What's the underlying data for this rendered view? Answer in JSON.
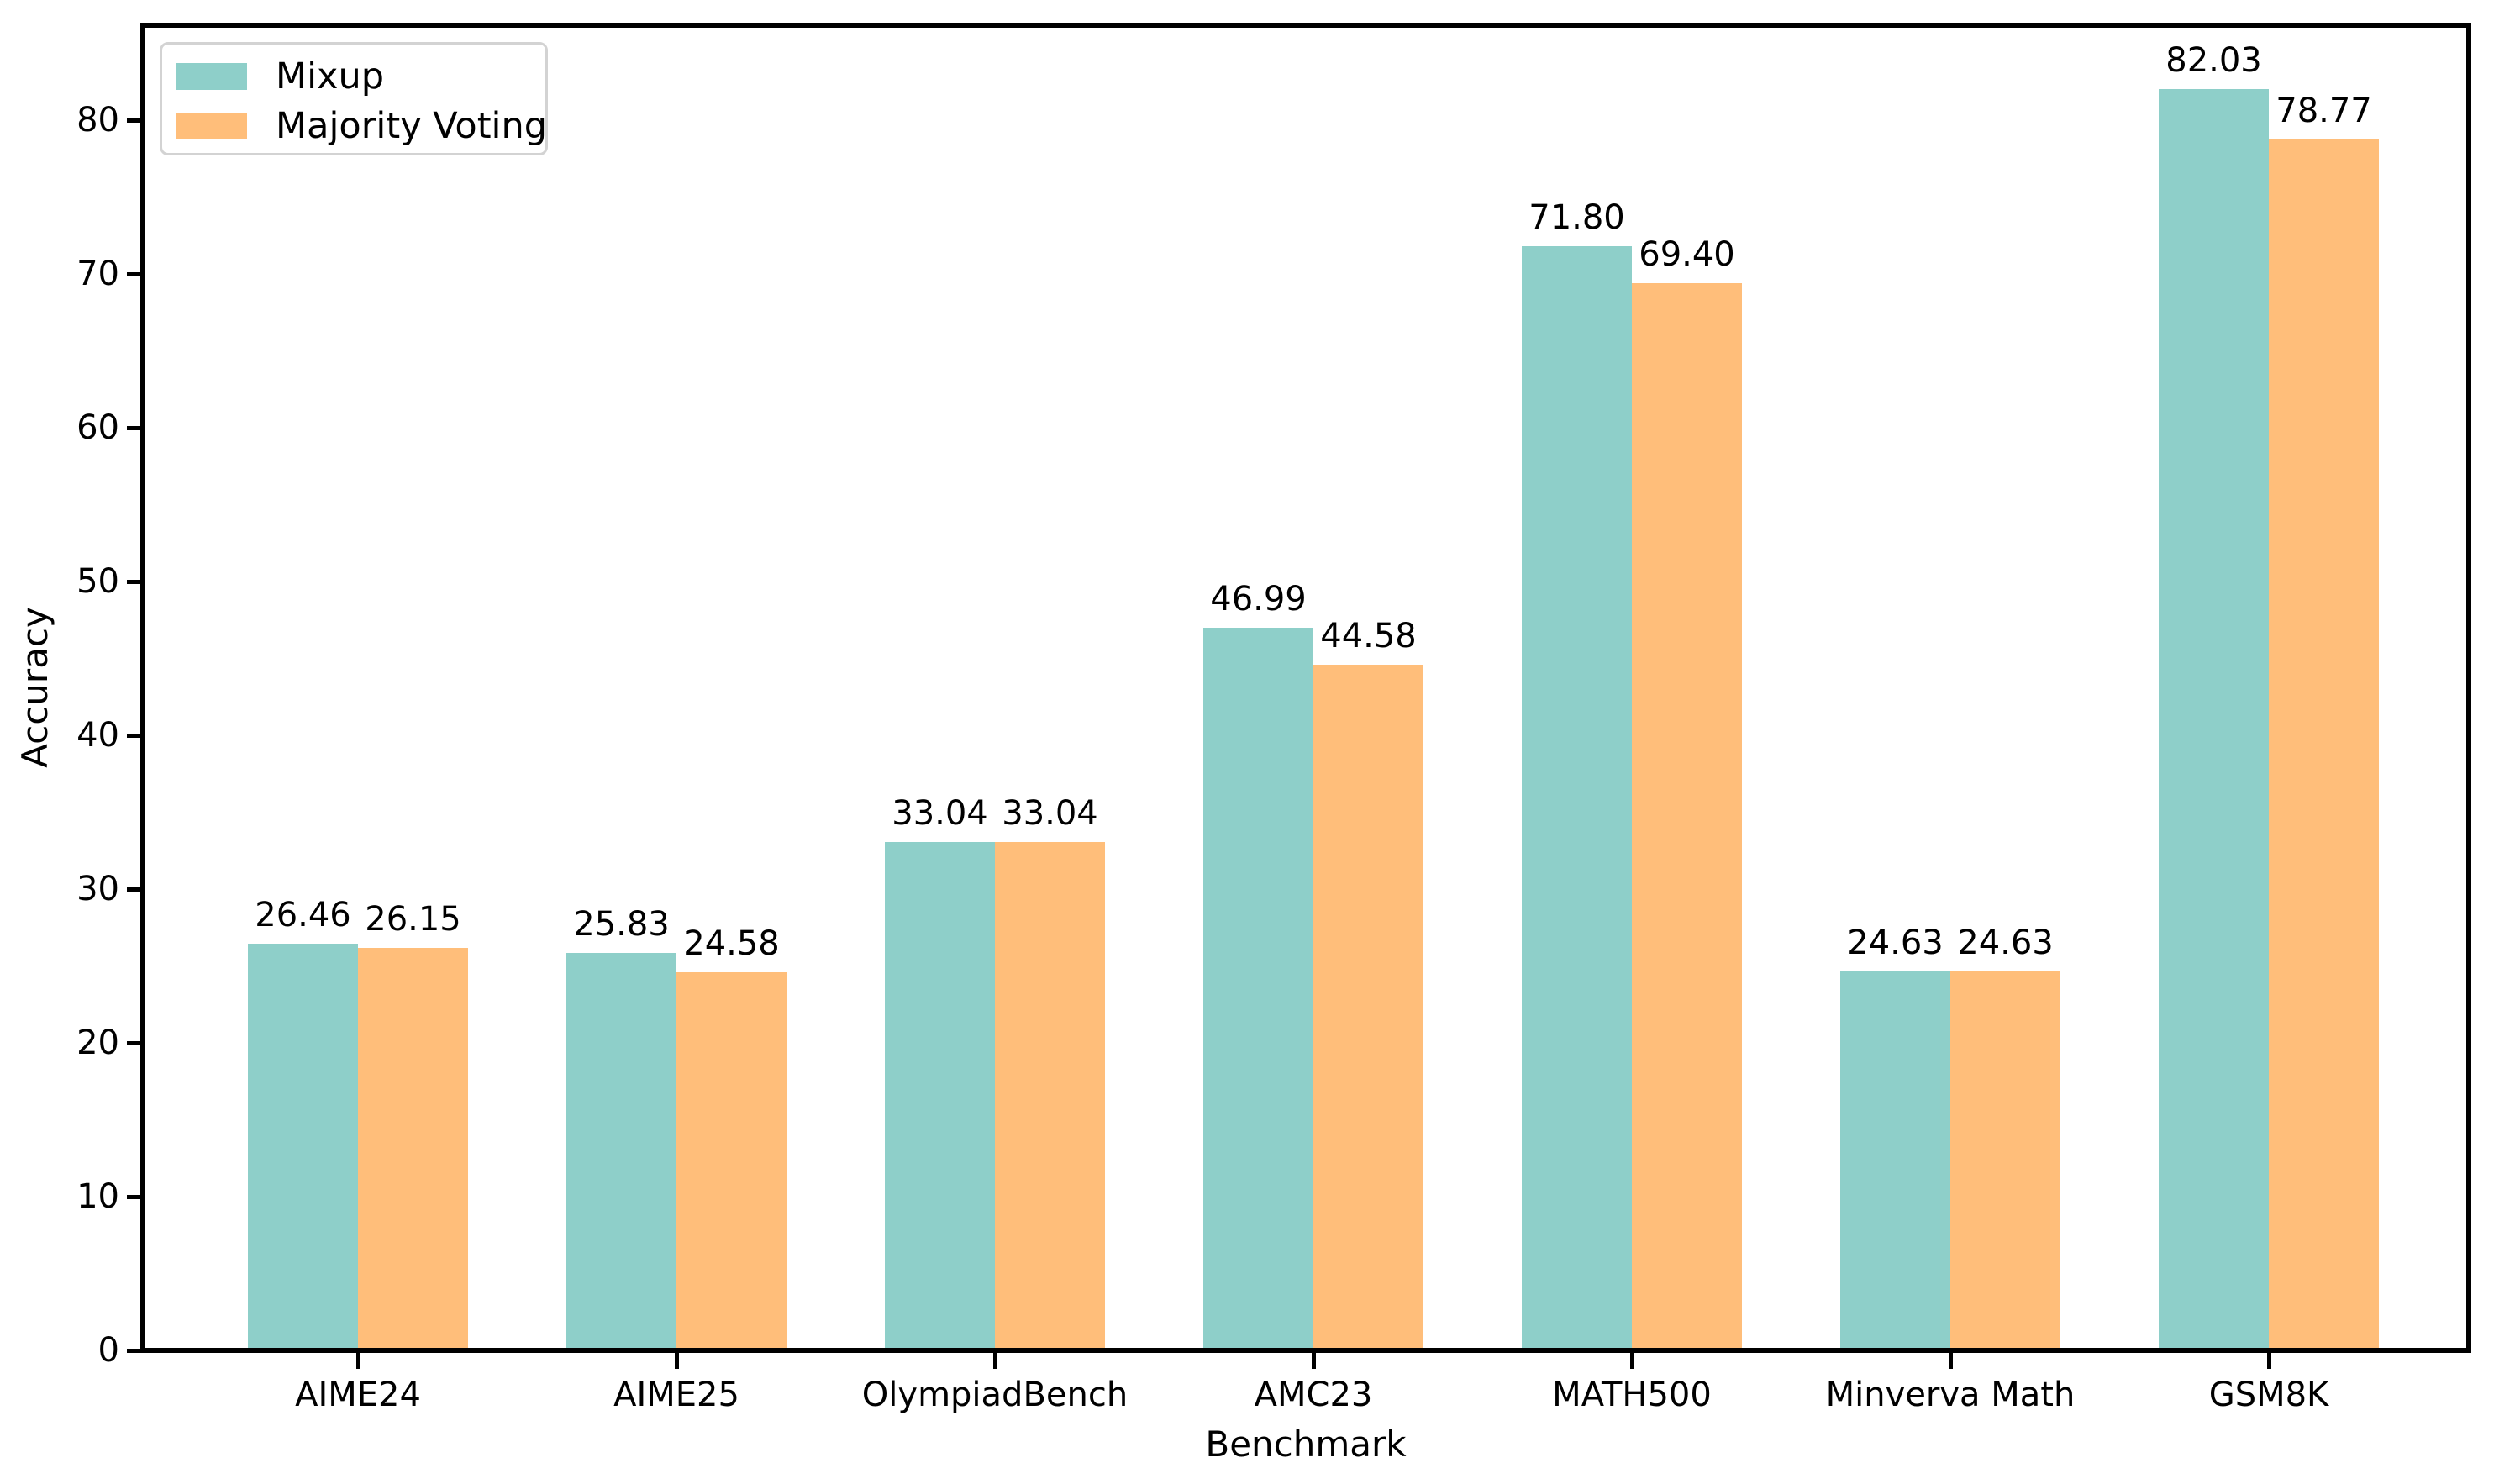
{
  "chart_data": {
    "type": "bar",
    "title": "",
    "xlabel": "Benchmark",
    "ylabel": "Accuracy",
    "categories": [
      "AIME24",
      "AIME25",
      "OlympiadBench",
      "AMC23",
      "MATH500",
      "Minverva Math",
      "GSM8K"
    ],
    "series": [
      {
        "name": "Mixup",
        "color": "#8ECFC9",
        "values": [
          26.46,
          25.83,
          33.04,
          46.99,
          71.8,
          24.63,
          82.03
        ]
      },
      {
        "name": "Majority Voting",
        "color": "#FFBE7A",
        "values": [
          26.15,
          24.58,
          33.04,
          44.58,
          69.4,
          24.63,
          78.77
        ]
      }
    ],
    "value_labels": [
      [
        "26.46",
        "25.83",
        "33.04",
        "46.99",
        "71.80",
        "24.63",
        "82.03"
      ],
      [
        "26.15",
        "24.58",
        "33.04",
        "44.58",
        "69.40",
        "24.63",
        "78.77"
      ]
    ],
    "ylim": [
      0,
      86
    ],
    "yticks": [
      0,
      10,
      20,
      30,
      40,
      50,
      60,
      70,
      80
    ],
    "legend_position": "upper left",
    "grid": false,
    "background_color": "#ffffff",
    "spine_color": "#000000",
    "text_color": "#000000",
    "legend_border_color": "#d3d3d3"
  }
}
